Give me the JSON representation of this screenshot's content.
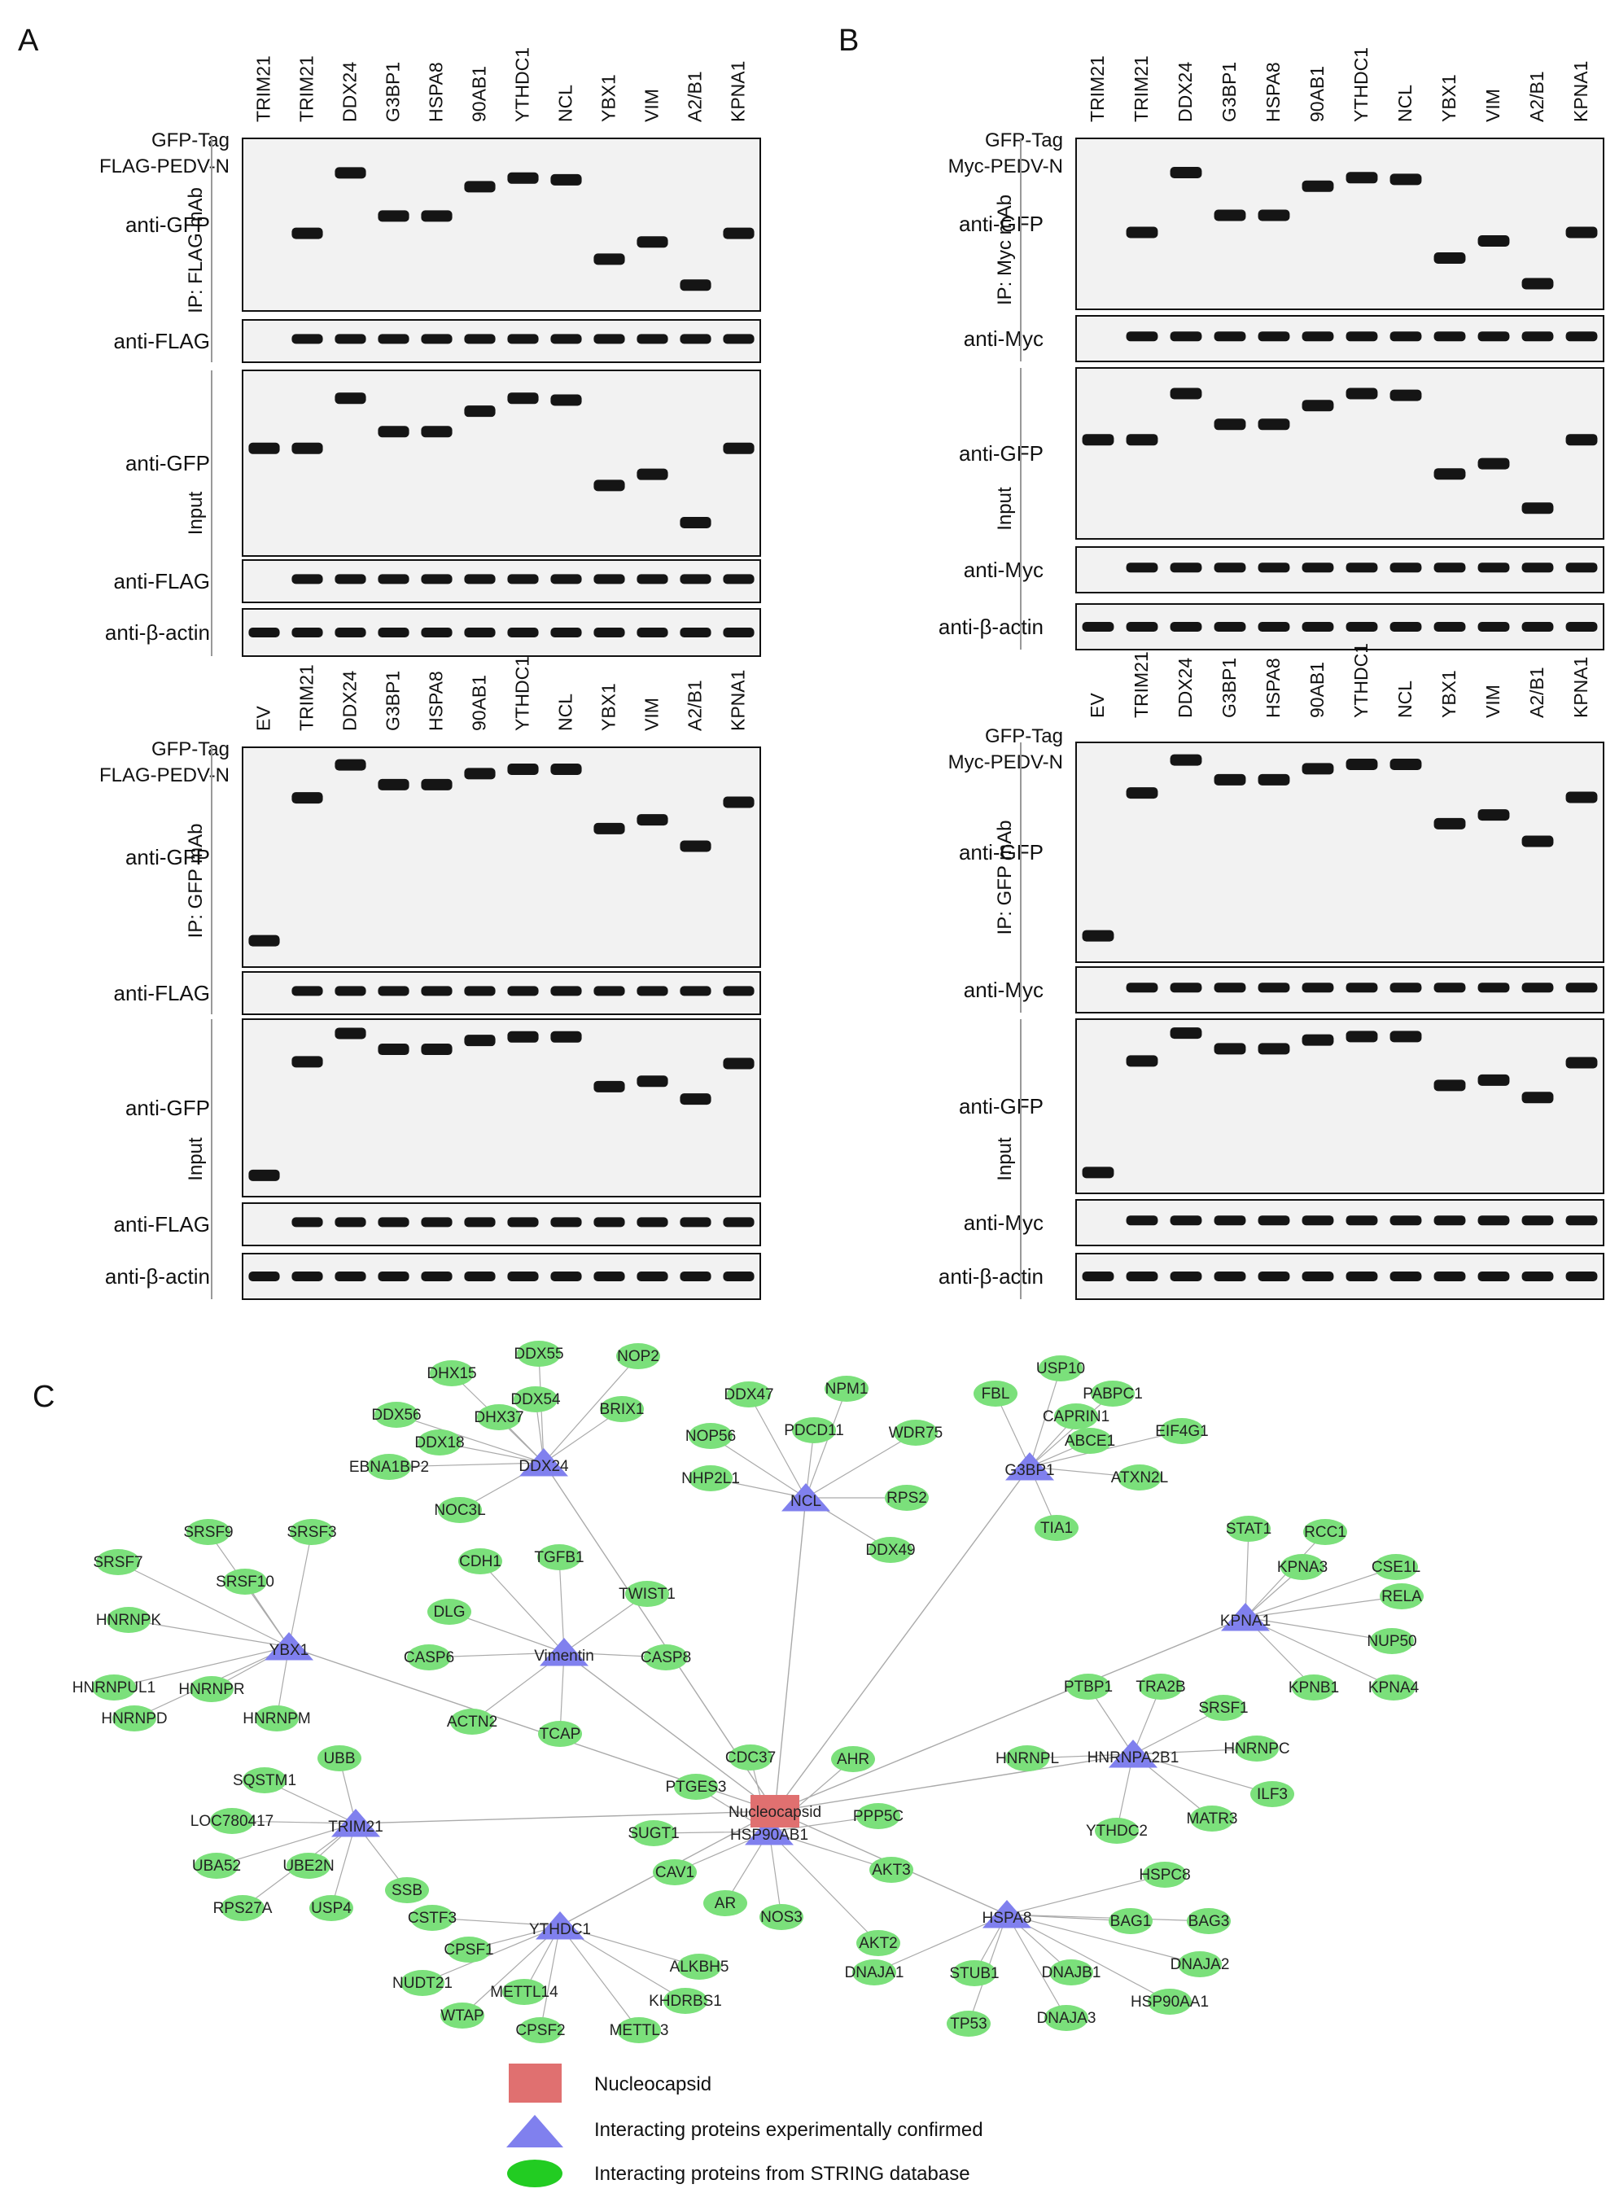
{
  "panels": {
    "A": "A",
    "B": "B",
    "C": "C"
  },
  "lanes": [
    "TRIM21",
    "TRIM21",
    "DDX24",
    "G3BP1",
    "HSPA8",
    "90AB1",
    "YTHDC1",
    "NCL",
    "YBX1",
    "VIM",
    "A2/B1",
    "KPNA1"
  ],
  "lanes_ev": [
    "EV",
    "TRIM21",
    "DDX24",
    "G3BP1",
    "HSPA8",
    "90AB1",
    "YTHDC1",
    "NCL",
    "YBX1",
    "VIM",
    "A2/B1",
    "KPNA1"
  ],
  "signs_first": [
    "-",
    "+",
    "+",
    "+",
    "+",
    "+",
    "+",
    "+",
    "+",
    "+",
    "+",
    "+"
  ],
  "signs_all": [
    "+",
    "+",
    "+",
    "+",
    "+",
    "+",
    "+",
    "+",
    "+",
    "+",
    "+",
    "+"
  ],
  "blots": {
    "A_top": {
      "tag": "GFP-Tag",
      "bait": "FLAG-PEDV-N",
      "ip": "IP: FLAG mAb",
      "input": "Input",
      "rows": [
        "anti-GFP",
        "anti-FLAG",
        "anti-GFP",
        "anti-FLAG",
        "anti-β-actin"
      ]
    },
    "A_bottom": {
      "tag": "GFP-Tag",
      "bait": "FLAG-PEDV-N",
      "ip": "IP: GFP mAb",
      "input": "Input",
      "rows": [
        "anti-GFP",
        "anti-FLAG",
        "anti-GFP",
        "anti-FLAG",
        "anti-β-actin"
      ]
    },
    "B_top": {
      "tag": "GFP-Tag",
      "bait": "Myc-PEDV-N",
      "ip": "IP: Myc mAb",
      "input": "Input",
      "rows": [
        "anti-GFP",
        "anti-Myc",
        "anti-GFP",
        "anti-Myc",
        "anti-β-actin"
      ]
    },
    "B_bottom": {
      "tag": "GFP-Tag",
      "bait": "Myc-PEDV-N",
      "ip": "IP: GFP mAb",
      "input": "Input",
      "rows": [
        "anti-GFP",
        "anti-Myc",
        "anti-GFP",
        "anti-Myc",
        "anti-β-actin"
      ]
    }
  },
  "network": {
    "center": "Nucleocapsid",
    "hubs": [
      "DDX24",
      "NCL",
      "G3BP1",
      "YBX1",
      "Vimentin",
      "KPNA1",
      "HNRNPA2B1",
      "TRIM21",
      "HSP90AB1",
      "YTHDC1",
      "HSPA8"
    ],
    "satellites": {
      "DDX24": [
        "DHX15",
        "DDX55",
        "NOP2",
        "DDX54",
        "BRIX1",
        "DDX56",
        "DHX37",
        "DDX18",
        "EBNA1BP2",
        "NOC3L"
      ],
      "NCL": [
        "DDX47",
        "NPM1",
        "NOP56",
        "PDCD11",
        "WDR75",
        "NHP2L1",
        "RPS2",
        "DDX49"
      ],
      "G3BP1": [
        "USP10",
        "FBL",
        "PABPC1",
        "CAPRIN1",
        "ABCE1",
        "EIF4G1",
        "ATXN2L",
        "TIA1"
      ],
      "YBX1": [
        "SRSF9",
        "SRSF3",
        "SRSF7",
        "SRSF10",
        "HNRNPK",
        "HNRNPUL1",
        "HNRNPR",
        "HNRNPD",
        "HNRNPM"
      ],
      "Vimentin": [
        "CDH1",
        "TGFB1",
        "TWIST1",
        "DLG",
        "CASP6",
        "CASP8",
        "ACTN2",
        "TCAP"
      ],
      "KPNA1": [
        "STAT1",
        "RCC1",
        "KPNA3",
        "CSE1L",
        "RELA",
        "NUP50",
        "KPNB1",
        "KPNA4"
      ],
      "HNRNPA2B1": [
        "PTBP1",
        "TRA2B",
        "SRSF1",
        "HNRNPC",
        "HNRNPL",
        "ILF3",
        "MATR3",
        "YTHDC2"
      ],
      "TRIM21": [
        "UBB",
        "SQSTM1",
        "LOC780417",
        "UBA52",
        "UBE2N",
        "SSB",
        "RPS27A",
        "USP4"
      ],
      "HSP90AB1": [
        "CDC37",
        "AHR",
        "PTGES3",
        "PPP5C",
        "SUGT1",
        "CAV1",
        "AKT3",
        "AR",
        "NOS3",
        "AKT2"
      ],
      "YTHDC1": [
        "CSTF3",
        "CPSF1",
        "ALKBH5",
        "NUDT21",
        "METTL14",
        "KHDRBS1",
        "WTAP",
        "CPSF2",
        "METTL3"
      ],
      "HSPA8": [
        "HSPC8",
        "BAG1",
        "BAG3",
        "DNAJA1",
        "STUB1",
        "DNAJB1",
        "DNAJA2",
        "HSP90AA1",
        "TP53",
        "DNAJA3"
      ]
    },
    "legend": {
      "square": "Nucleocapsid",
      "triangle": "Interacting proteins experimentally confirmed",
      "ellipse": "Interacting proteins from STRING database"
    },
    "colors": {
      "center": "#e07070",
      "hub": "#8080ee",
      "satellite": "#7be07b",
      "edge": "#aaaaaa"
    }
  }
}
